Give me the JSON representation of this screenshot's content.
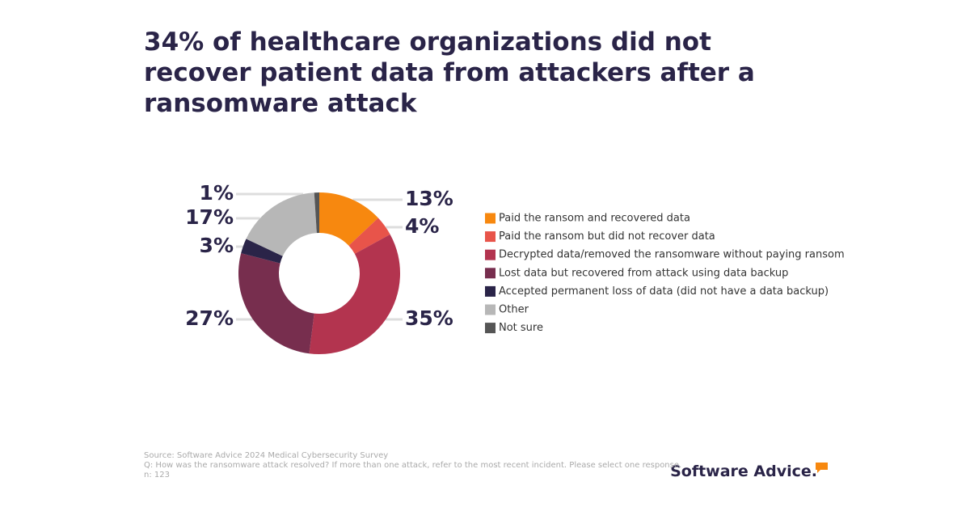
{
  "chart_data": {
    "type": "donut",
    "title": "34% of healthcare organizations did not recover patient data from attackers after a ransomware attack",
    "categories": [
      "Paid the ransom and recovered data",
      "Paid the ransom but did not recover data",
      "Decrypted data/removed the ransomware without paying ransom",
      "Lost data but recovered from attack using data backup",
      "Accepted permanent loss of data (did not have a data backup)",
      "Other",
      "Not sure"
    ],
    "values": [
      13,
      4,
      35,
      27,
      3,
      17,
      1
    ],
    "value_labels": [
      "13%",
      "4%",
      "35%",
      "27%",
      "3%",
      "17%",
      "1%"
    ],
    "colors": [
      "#f7880f",
      "#e8544a",
      "#b3344f",
      "#772e4e",
      "#2a2448",
      "#b7b7b7",
      "#555555"
    ],
    "legend": "right",
    "notes": [
      "Source: Software Advice 2024 Medical Cybersecurity Survey",
      "Q: How was the ransomware attack resolved? If more than one attack, refer to the most recent incident. Please select one response.",
      "n: 123"
    ],
    "brand": "Software Advice."
  }
}
